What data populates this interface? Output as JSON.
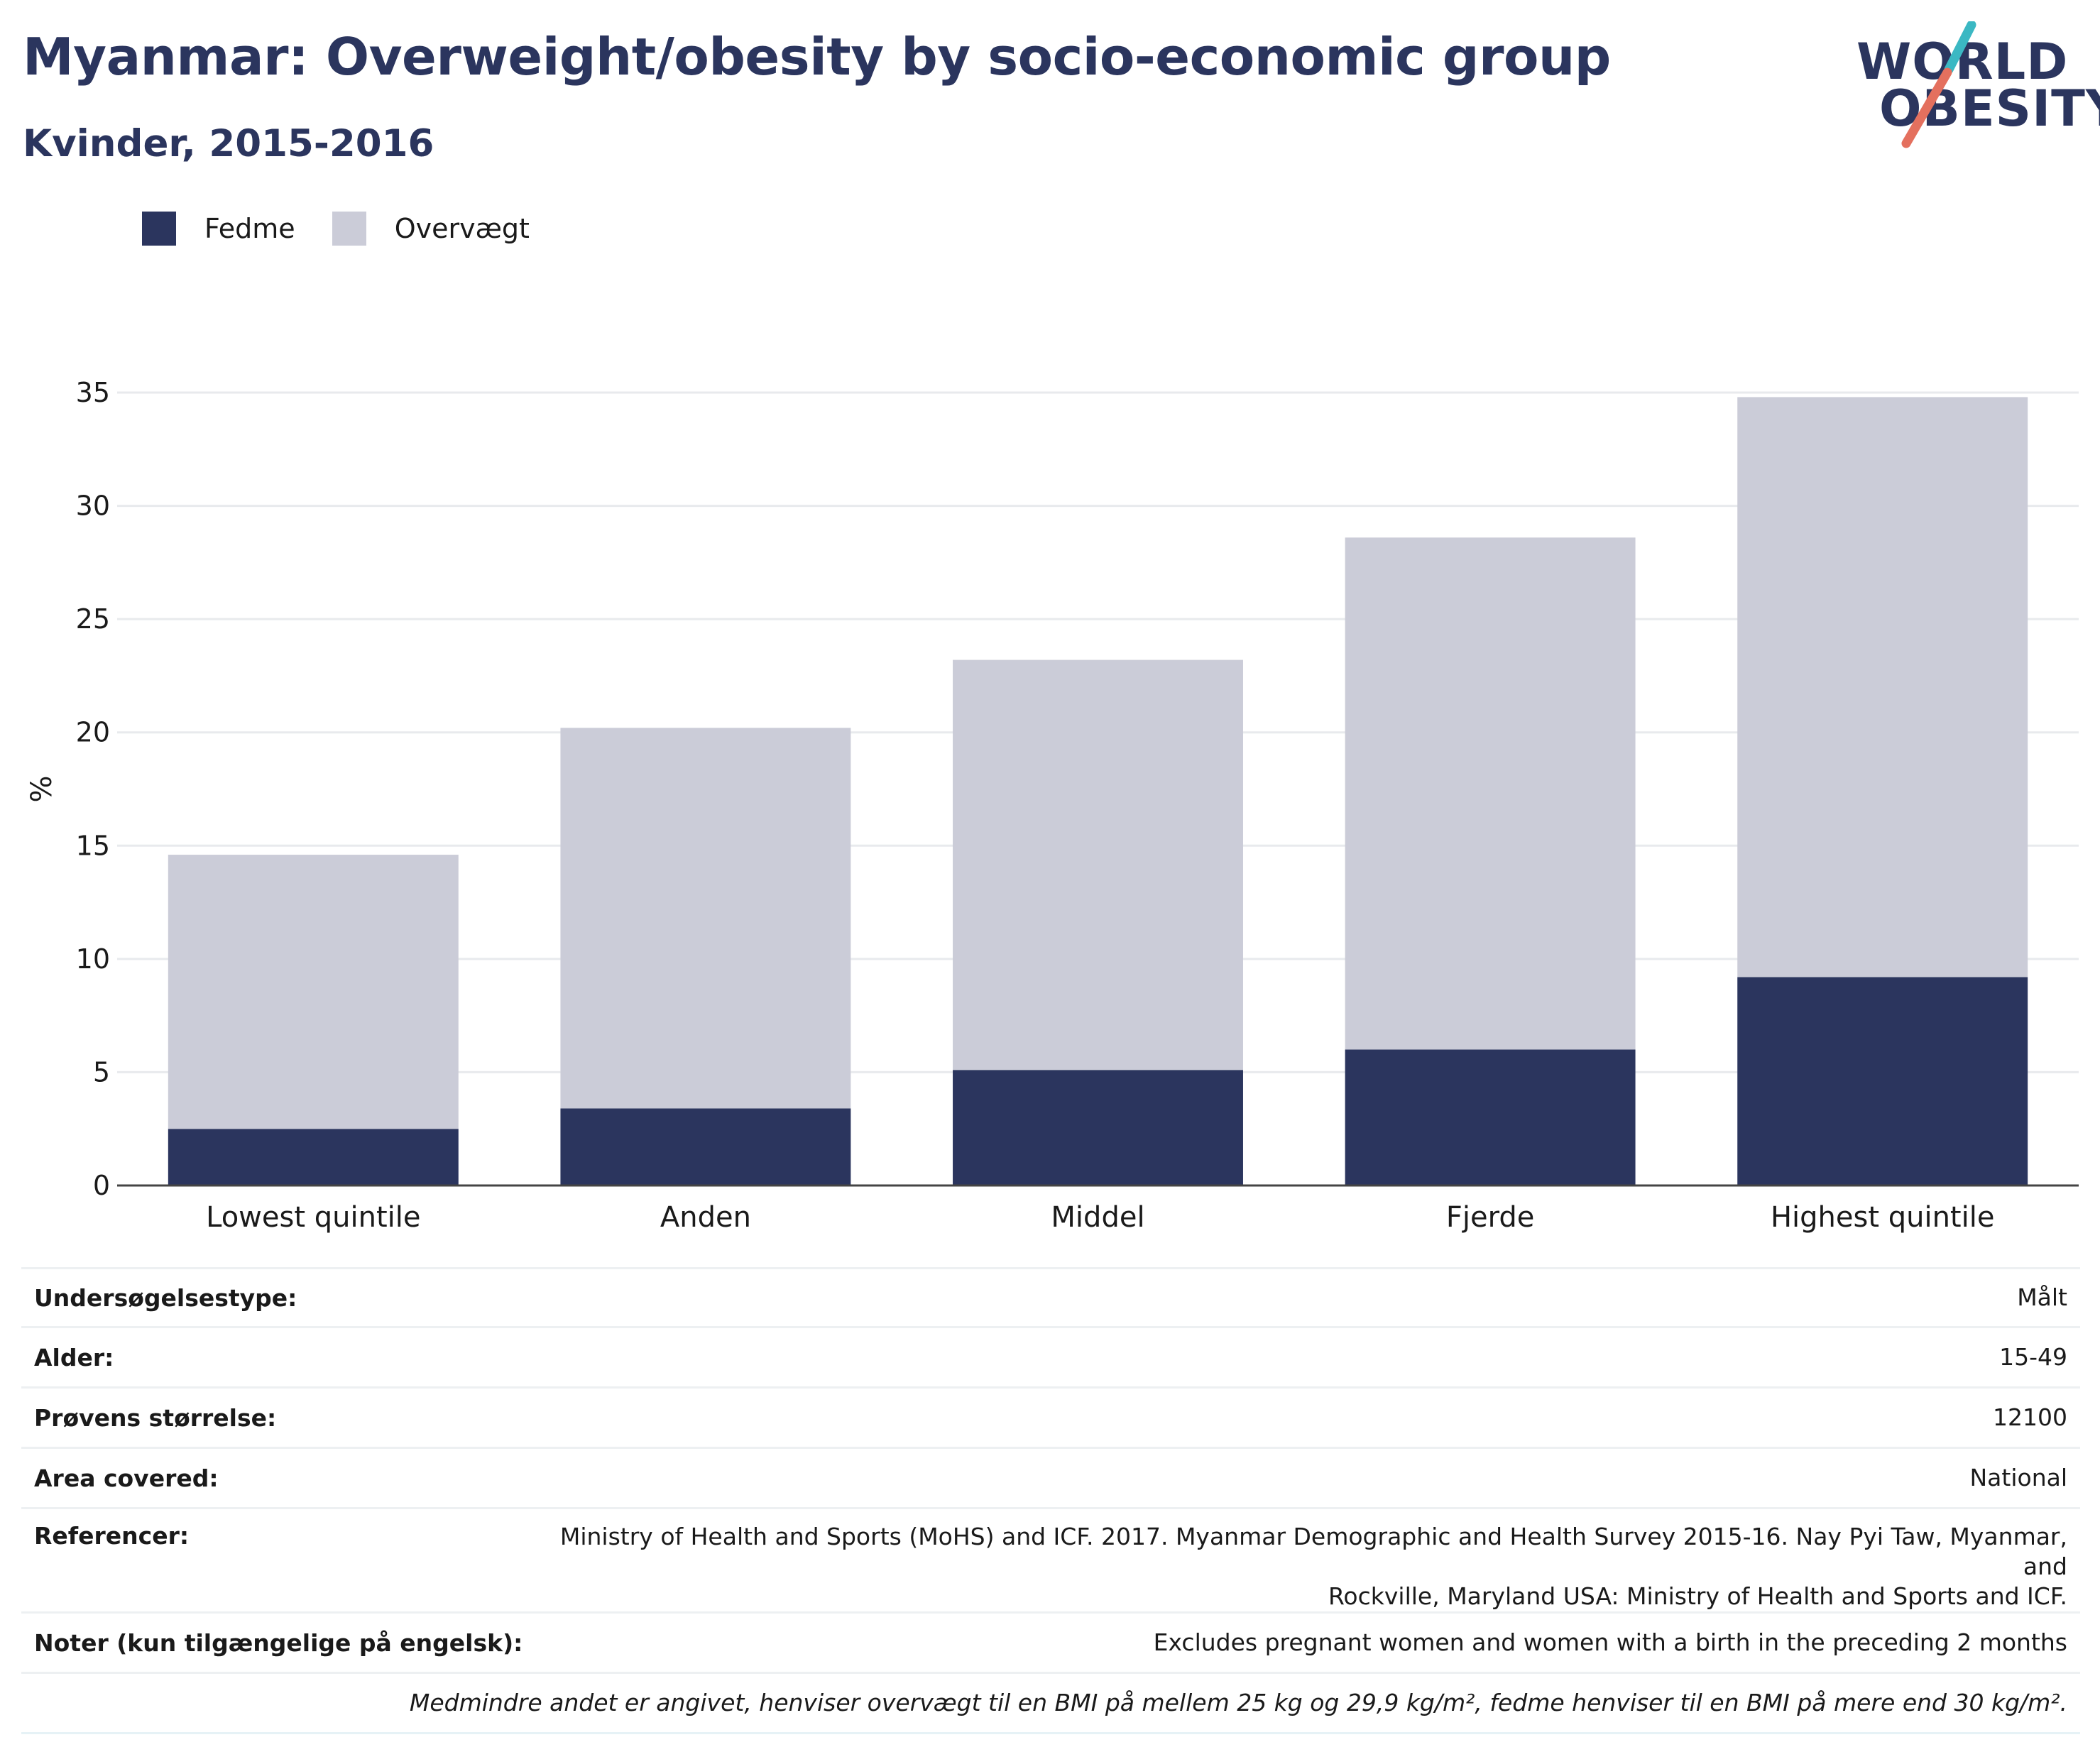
{
  "header": {
    "title": "Myanmar: Overweight/obesity by socio-economic group",
    "subtitle": "Kvinder, 2015-2016"
  },
  "logo": {
    "line1": "WORLD",
    "line2": "OBESITY",
    "accent_colors": [
      "#3bb8c3",
      "#e4705e"
    ]
  },
  "legend": [
    {
      "label": "Fedme",
      "color": "#2b355e"
    },
    {
      "label": "Overvægt",
      "color": "#cbccd8"
    }
  ],
  "chart_data": {
    "type": "bar",
    "stacked": true,
    "categories": [
      "Lowest quintile",
      "Anden",
      "Middel",
      "Fjerde",
      "Highest quintile"
    ],
    "series": [
      {
        "name": "Fedme",
        "color": "#2b355e",
        "values": [
          2.5,
          3.4,
          5.1,
          6.0,
          9.2
        ]
      },
      {
        "name": "Overvægt",
        "color": "#cbccd8",
        "values": [
          12.1,
          16.8,
          18.1,
          22.6,
          25.6
        ]
      }
    ],
    "ylabel": "%",
    "ylim": [
      0,
      35
    ],
    "yticks": [
      0,
      5,
      10,
      15,
      20,
      25,
      30,
      35
    ],
    "grid": true,
    "legend_position": "top-left"
  },
  "info": {
    "rows": [
      {
        "key": "Undersøgelsestype:",
        "value": "Målt"
      },
      {
        "key": "Alder:",
        "value": "15-49"
      },
      {
        "key": "Prøvens størrelse:",
        "value": "12100"
      },
      {
        "key": "Area covered:",
        "value": "National"
      },
      {
        "key": "Referencer:",
        "value_line1": "Ministry of Health and Sports (MoHS) and ICF. 2017. Myanmar Demographic and Health Survey 2015-16. Nay Pyi Taw, Myanmar, and",
        "value_line2": "Rockville, Maryland USA: Ministry of Health and Sports and ICF."
      },
      {
        "key": "Noter (kun tilgængelige på engelsk):",
        "value": "Excludes pregnant women and women with a birth in the preceding 2 months"
      }
    ],
    "footnote": "Medmindre andet er angivet, henviser overvægt til en BMI på mellem 25 kg og 29,9 kg/m², fedme henviser til en BMI på mere end 30 kg/m²."
  }
}
